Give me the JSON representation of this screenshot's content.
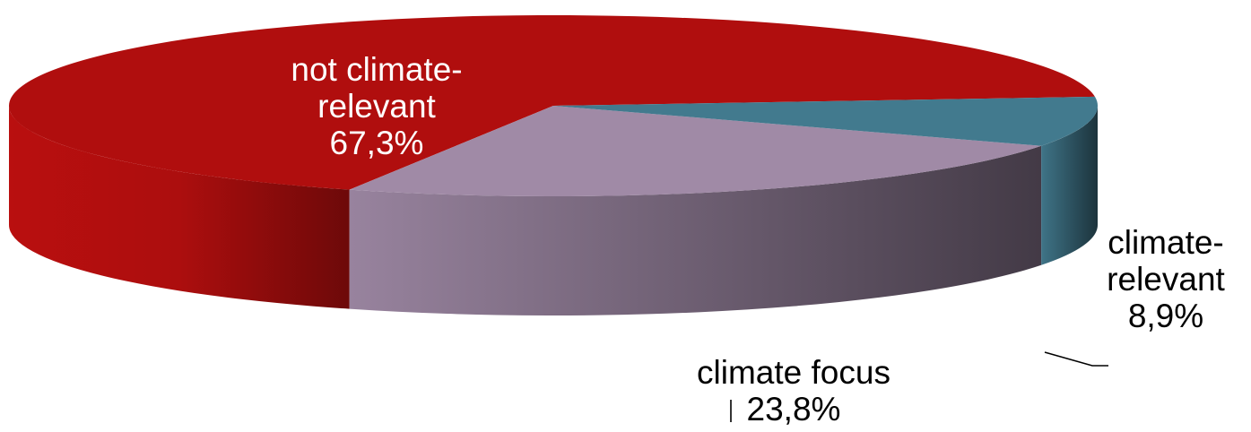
{
  "chart_data": {
    "type": "pie",
    "style": "3d",
    "slices": [
      {
        "label_lines": [
          "not climate-",
          "relevant"
        ],
        "value": 67.3,
        "value_text": "67,3%",
        "color": "#b00e0e"
      },
      {
        "label_lines": [
          "climate focus"
        ],
        "value": 23.8,
        "value_text": "23,8%",
        "color": "#a08aa6"
      },
      {
        "label_lines": [
          "climate-",
          "relevant"
        ],
        "value": 8.9,
        "value_text": "8,9%",
        "color": "#427a8e"
      }
    ],
    "legend": "none",
    "labels": "data labels with leader lines"
  }
}
